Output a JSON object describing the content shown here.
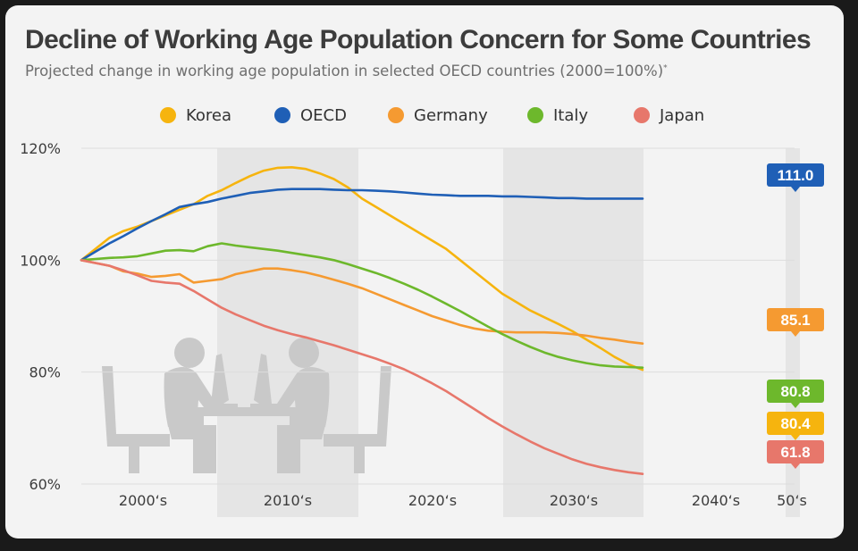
{
  "title": "Decline of Working Age Population Concern for Some Countries",
  "subtitle": "Projected change in working age population in selected OECD countries (2000=100%)",
  "subtitle_marker": "*",
  "colors": {
    "korea": "#f6b40e",
    "oecd": "#1f5fb6",
    "germany": "#f59a31",
    "italy": "#6db82c",
    "japan": "#e7776b",
    "band": "#e5e5e5",
    "icon": "#c9c9c9"
  },
  "chart_data": {
    "type": "line",
    "x_labels": [
      "2000‘s",
      "2010‘s",
      "2020‘s",
      "2030‘s",
      "2040‘s",
      "50‘s"
    ],
    "y_ticks": [
      "120%",
      "100%",
      "80%",
      "60%"
    ],
    "ylim": [
      60,
      120
    ],
    "xlim": [
      2000,
      2050
    ],
    "legend_position": "top",
    "series": [
      {
        "name": "Korea",
        "color_key": "korea",
        "end_label": "80.4",
        "points": [
          [
            2000,
            100
          ],
          [
            2001,
            102
          ],
          [
            2002,
            104
          ],
          [
            2003,
            105.2
          ],
          [
            2004,
            106
          ],
          [
            2005,
            107
          ],
          [
            2006,
            108
          ],
          [
            2007,
            109
          ],
          [
            2008,
            110
          ],
          [
            2009,
            111.5
          ],
          [
            2010,
            112.5
          ],
          [
            2011,
            113.8
          ],
          [
            2012,
            115
          ],
          [
            2013,
            116
          ],
          [
            2014,
            116.5
          ],
          [
            2015,
            116.6
          ],
          [
            2016,
            116.3
          ],
          [
            2017,
            115.5
          ],
          [
            2018,
            114.5
          ],
          [
            2019,
            113
          ],
          [
            2020,
            111
          ],
          [
            2021,
            109.5
          ],
          [
            2022,
            108
          ],
          [
            2023,
            106.5
          ],
          [
            2024,
            105
          ],
          [
            2025,
            103.5
          ],
          [
            2026,
            102
          ],
          [
            2027,
            100
          ],
          [
            2028,
            98
          ],
          [
            2029,
            96
          ],
          [
            2030,
            94
          ],
          [
            2031,
            92.5
          ],
          [
            2032,
            91
          ],
          [
            2033,
            89.8
          ],
          [
            2034,
            88.6
          ],
          [
            2035,
            87.3
          ],
          [
            2036,
            85.8
          ],
          [
            2037,
            84.3
          ],
          [
            2038,
            82.7
          ],
          [
            2039,
            81.4
          ],
          [
            2040,
            80.4
          ]
        ]
      },
      {
        "name": "OECD",
        "color_key": "oecd",
        "end_label": "111.0",
        "points": [
          [
            2000,
            100
          ],
          [
            2001,
            101.5
          ],
          [
            2002,
            103
          ],
          [
            2003,
            104.3
          ],
          [
            2004,
            105.7
          ],
          [
            2005,
            107
          ],
          [
            2006,
            108.2
          ],
          [
            2007,
            109.5
          ],
          [
            2008,
            110
          ],
          [
            2009,
            110.4
          ],
          [
            2010,
            111
          ],
          [
            2011,
            111.5
          ],
          [
            2012,
            112
          ],
          [
            2013,
            112.3
          ],
          [
            2014,
            112.6
          ],
          [
            2015,
            112.7
          ],
          [
            2016,
            112.7
          ],
          [
            2017,
            112.7
          ],
          [
            2018,
            112.6
          ],
          [
            2019,
            112.5
          ],
          [
            2020,
            112.5
          ],
          [
            2021,
            112.4
          ],
          [
            2022,
            112.3
          ],
          [
            2023,
            112.1
          ],
          [
            2024,
            111.9
          ],
          [
            2025,
            111.7
          ],
          [
            2026,
            111.6
          ],
          [
            2027,
            111.5
          ],
          [
            2028,
            111.5
          ],
          [
            2029,
            111.5
          ],
          [
            2030,
            111.4
          ],
          [
            2031,
            111.4
          ],
          [
            2032,
            111.3
          ],
          [
            2033,
            111.2
          ],
          [
            2034,
            111.1
          ],
          [
            2035,
            111.1
          ],
          [
            2036,
            111
          ],
          [
            2037,
            111
          ],
          [
            2038,
            111
          ],
          [
            2039,
            111
          ],
          [
            2040,
            111
          ]
        ]
      },
      {
        "name": "Germany",
        "color_key": "germany",
        "end_label": "85.1",
        "points": [
          [
            2000,
            100
          ],
          [
            2001,
            99.5
          ],
          [
            2002,
            99
          ],
          [
            2003,
            98
          ],
          [
            2004,
            97.6
          ],
          [
            2005,
            97
          ],
          [
            2006,
            97.2
          ],
          [
            2007,
            97.5
          ],
          [
            2008,
            96
          ],
          [
            2009,
            96.3
          ],
          [
            2010,
            96.6
          ],
          [
            2011,
            97.5
          ],
          [
            2012,
            98
          ],
          [
            2013,
            98.5
          ],
          [
            2014,
            98.5
          ],
          [
            2015,
            98.2
          ],
          [
            2016,
            97.8
          ],
          [
            2017,
            97.2
          ],
          [
            2018,
            96.5
          ],
          [
            2019,
            95.8
          ],
          [
            2020,
            95
          ],
          [
            2021,
            94
          ],
          [
            2022,
            93
          ],
          [
            2023,
            92
          ],
          [
            2024,
            91
          ],
          [
            2025,
            90
          ],
          [
            2026,
            89.2
          ],
          [
            2027,
            88.4
          ],
          [
            2028,
            87.8
          ],
          [
            2029,
            87.4
          ],
          [
            2030,
            87.2
          ],
          [
            2031,
            87.1
          ],
          [
            2032,
            87.1
          ],
          [
            2033,
            87.1
          ],
          [
            2034,
            87
          ],
          [
            2035,
            86.8
          ],
          [
            2036,
            86.5
          ],
          [
            2037,
            86.1
          ],
          [
            2038,
            85.8
          ],
          [
            2039,
            85.4
          ],
          [
            2040,
            85.1
          ]
        ]
      },
      {
        "name": "Italy",
        "color_key": "italy",
        "end_label": "80.8",
        "points": [
          [
            2000,
            100
          ],
          [
            2001,
            100.2
          ],
          [
            2002,
            100.4
          ],
          [
            2003,
            100.5
          ],
          [
            2004,
            100.7
          ],
          [
            2005,
            101.2
          ],
          [
            2006,
            101.7
          ],
          [
            2007,
            101.8
          ],
          [
            2008,
            101.6
          ],
          [
            2009,
            102.5
          ],
          [
            2010,
            103
          ],
          [
            2011,
            102.6
          ],
          [
            2012,
            102.3
          ],
          [
            2013,
            102
          ],
          [
            2014,
            101.7
          ],
          [
            2015,
            101.3
          ],
          [
            2016,
            100.9
          ],
          [
            2017,
            100.5
          ],
          [
            2018,
            100
          ],
          [
            2019,
            99.3
          ],
          [
            2020,
            98.5
          ],
          [
            2021,
            97.7
          ],
          [
            2022,
            96.8
          ],
          [
            2023,
            95.8
          ],
          [
            2024,
            94.7
          ],
          [
            2025,
            93.5
          ],
          [
            2026,
            92.2
          ],
          [
            2027,
            90.9
          ],
          [
            2028,
            89.5
          ],
          [
            2029,
            88.1
          ],
          [
            2030,
            86.8
          ],
          [
            2031,
            85.6
          ],
          [
            2032,
            84.5
          ],
          [
            2033,
            83.5
          ],
          [
            2034,
            82.7
          ],
          [
            2035,
            82.1
          ],
          [
            2036,
            81.6
          ],
          [
            2037,
            81.2
          ],
          [
            2038,
            81
          ],
          [
            2039,
            80.9
          ],
          [
            2040,
            80.8
          ]
        ]
      },
      {
        "name": "Japan",
        "color_key": "japan",
        "end_label": "61.8",
        "points": [
          [
            2000,
            100
          ],
          [
            2001,
            99.5
          ],
          [
            2002,
            99
          ],
          [
            2003,
            98.2
          ],
          [
            2004,
            97.3
          ],
          [
            2005,
            96.3
          ],
          [
            2006,
            96
          ],
          [
            2007,
            95.8
          ],
          [
            2008,
            94.5
          ],
          [
            2009,
            93
          ],
          [
            2010,
            91.5
          ],
          [
            2011,
            90.3
          ],
          [
            2012,
            89.3
          ],
          [
            2013,
            88.3
          ],
          [
            2014,
            87.5
          ],
          [
            2015,
            86.8
          ],
          [
            2016,
            86.2
          ],
          [
            2017,
            85.5
          ],
          [
            2018,
            84.8
          ],
          [
            2019,
            84
          ],
          [
            2020,
            83.2
          ],
          [
            2021,
            82.4
          ],
          [
            2022,
            81.5
          ],
          [
            2023,
            80.5
          ],
          [
            2024,
            79.3
          ],
          [
            2025,
            78
          ],
          [
            2026,
            76.6
          ],
          [
            2027,
            75
          ],
          [
            2028,
            73.4
          ],
          [
            2029,
            71.8
          ],
          [
            2030,
            70.3
          ],
          [
            2031,
            68.9
          ],
          [
            2032,
            67.6
          ],
          [
            2033,
            66.4
          ],
          [
            2034,
            65.4
          ],
          [
            2035,
            64.4
          ],
          [
            2036,
            63.6
          ],
          [
            2037,
            63
          ],
          [
            2038,
            62.5
          ],
          [
            2039,
            62.1
          ],
          [
            2040,
            61.8
          ]
        ]
      }
    ]
  }
}
